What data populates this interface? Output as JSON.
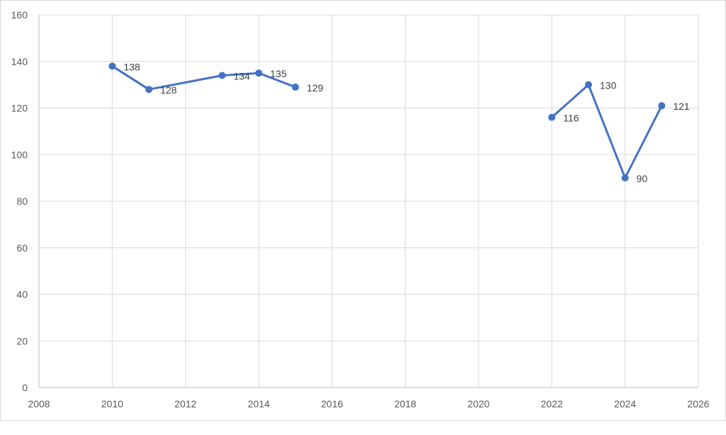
{
  "chart_data": {
    "type": "scatter",
    "title": "",
    "xlabel": "",
    "ylabel": "",
    "xlim": [
      2008,
      2026
    ],
    "ylim": [
      0,
      160
    ],
    "x_ticks": [
      2008,
      2010,
      2012,
      2014,
      2016,
      2018,
      2020,
      2022,
      2024,
      2026
    ],
    "y_ticks": [
      0,
      20,
      40,
      60,
      80,
      100,
      120,
      140,
      160
    ],
    "grid": true,
    "legend": "none",
    "series": [
      {
        "color": "#4472c4",
        "points": [
          {
            "x": 2010,
            "y": 138
          },
          {
            "x": 2011,
            "y": 128
          },
          {
            "x": 2013,
            "y": 134
          },
          {
            "x": 2014,
            "y": 135
          },
          {
            "x": 2015,
            "y": 129
          },
          {
            "x": 2022,
            "y": 116
          },
          {
            "x": 2023,
            "y": 130
          },
          {
            "x": 2024,
            "y": 90
          },
          {
            "x": 2025,
            "y": 121
          }
        ],
        "segments": [
          [
            0,
            4
          ],
          [
            5,
            8
          ]
        ]
      }
    ],
    "gridline_color": "#d9d9d9",
    "tick_label_color": "#595959",
    "data_label_color": "#404040"
  }
}
